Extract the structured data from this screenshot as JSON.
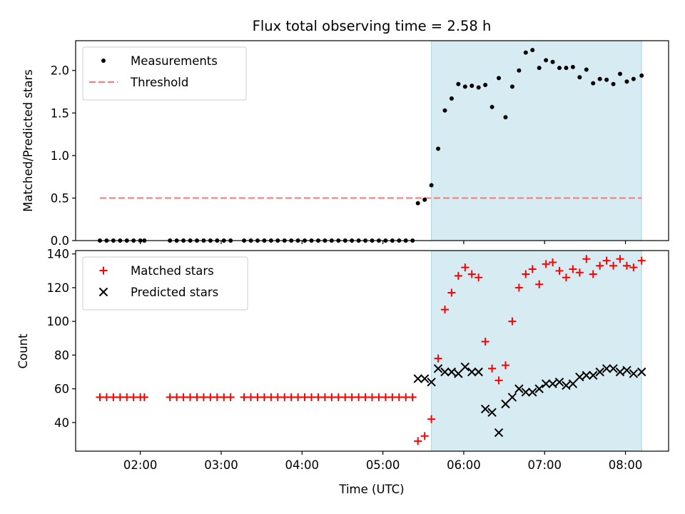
{
  "figure": {
    "title": "Flux total observing time = 2.58 h",
    "xlabel": "Time (UTC)"
  },
  "chart_data": [
    {
      "type": "scatter",
      "ylabel": "Matched/Predicted stars",
      "xlim": [
        "01:12",
        "08:32"
      ],
      "ylim": [
        0,
        2.35
      ],
      "yticks": [
        0.0,
        0.5,
        1.0,
        1.5,
        2.0
      ],
      "ytick_labels": [
        "0.0",
        "0.5",
        "1.0",
        "1.5",
        "2.0"
      ],
      "xticks": [
        "02:00",
        "03:00",
        "04:00",
        "05:00",
        "06:00",
        "07:00",
        "08:00"
      ],
      "grid": false,
      "legend": "top-left",
      "shaded_region": {
        "x": [
          "05:36",
          "08:12"
        ],
        "color": "#add8e6"
      },
      "threshold": {
        "name": "Threshold",
        "y": 0.5,
        "x": [
          "01:30",
          "08:12"
        ],
        "color": "#f08080"
      },
      "series": [
        {
          "name": "Measurements",
          "color": "#000000",
          "marker": "dot",
          "points": [
            [
              "01:30",
              0
            ],
            [
              "01:35",
              0
            ],
            [
              "01:40",
              0
            ],
            [
              "01:45",
              0
            ],
            [
              "01:50",
              0
            ],
            [
              "01:55",
              0
            ],
            [
              "02:00",
              0
            ],
            [
              "02:03",
              0
            ],
            [
              "02:22",
              0
            ],
            [
              "02:27",
              0
            ],
            [
              "02:32",
              0
            ],
            [
              "02:37",
              0
            ],
            [
              "02:42",
              0
            ],
            [
              "02:47",
              0
            ],
            [
              "02:52",
              0
            ],
            [
              "02:57",
              0
            ],
            [
              "03:02",
              0
            ],
            [
              "03:07",
              0
            ],
            [
              "03:17",
              0
            ],
            [
              "03:22",
              0
            ],
            [
              "03:27",
              0
            ],
            [
              "03:32",
              0
            ],
            [
              "03:37",
              0
            ],
            [
              "03:42",
              0
            ],
            [
              "03:47",
              0
            ],
            [
              "03:52",
              0
            ],
            [
              "03:57",
              0
            ],
            [
              "04:02",
              0
            ],
            [
              "04:07",
              0
            ],
            [
              "04:12",
              0
            ],
            [
              "04:17",
              0
            ],
            [
              "04:22",
              0
            ],
            [
              "04:27",
              0
            ],
            [
              "04:32",
              0
            ],
            [
              "04:37",
              0
            ],
            [
              "04:42",
              0
            ],
            [
              "04:47",
              0
            ],
            [
              "04:52",
              0
            ],
            [
              "04:57",
              0
            ],
            [
              "05:02",
              0
            ],
            [
              "05:07",
              0
            ],
            [
              "05:12",
              0
            ],
            [
              "05:17",
              0
            ],
            [
              "05:22",
              0
            ],
            [
              "05:26",
              0.44
            ],
            [
              "05:31",
              0.48
            ],
            [
              "05:36",
              0.65
            ],
            [
              "05:41",
              1.08
            ],
            [
              "05:46",
              1.53
            ],
            [
              "05:51",
              1.67
            ],
            [
              "05:56",
              1.84
            ],
            [
              "06:01",
              1.81
            ],
            [
              "06:06",
              1.82
            ],
            [
              "06:11",
              1.8
            ],
            [
              "06:16",
              1.83
            ],
            [
              "06:21",
              1.57
            ],
            [
              "06:26",
              1.91
            ],
            [
              "06:31",
              1.45
            ],
            [
              "06:36",
              1.81
            ],
            [
              "06:41",
              2.0
            ],
            [
              "06:46",
              2.21
            ],
            [
              "06:51",
              2.24
            ],
            [
              "06:56",
              2.03
            ],
            [
              "07:01",
              2.12
            ],
            [
              "07:06",
              2.1
            ],
            [
              "07:11",
              2.03
            ],
            [
              "07:16",
              2.03
            ],
            [
              "07:21",
              2.04
            ],
            [
              "07:26",
              1.92
            ],
            [
              "07:31",
              2.01
            ],
            [
              "07:36",
              1.85
            ],
            [
              "07:41",
              1.9
            ],
            [
              "07:46",
              1.89
            ],
            [
              "07:51",
              1.84
            ],
            [
              "07:56",
              1.96
            ],
            [
              "08:01",
              1.87
            ],
            [
              "08:06",
              1.9
            ],
            [
              "08:12",
              1.94
            ]
          ]
        }
      ]
    },
    {
      "type": "scatter",
      "ylabel": "Count",
      "xlim": [
        "01:12",
        "08:32"
      ],
      "ylim": [
        23,
        142
      ],
      "yticks": [
        40,
        60,
        80,
        100,
        120,
        140
      ],
      "ytick_labels": [
        "40",
        "60",
        "80",
        "100",
        "120",
        "140"
      ],
      "xticks": [
        "02:00",
        "03:00",
        "04:00",
        "05:00",
        "06:00",
        "07:00",
        "08:00"
      ],
      "xtick_labels": [
        "02:00",
        "03:00",
        "04:00",
        "05:00",
        "06:00",
        "07:00",
        "08:00"
      ],
      "grid": false,
      "legend": "top-left",
      "shaded_region": {
        "x": [
          "05:36",
          "08:12"
        ],
        "color": "#add8e6"
      },
      "series": [
        {
          "name": "Matched stars",
          "color": "#ff0000",
          "marker": "plus",
          "points": [
            [
              "01:30",
              55
            ],
            [
              "01:35",
              55
            ],
            [
              "01:40",
              55
            ],
            [
              "01:45",
              55
            ],
            [
              "01:50",
              55
            ],
            [
              "01:55",
              55
            ],
            [
              "02:00",
              55
            ],
            [
              "02:03",
              55
            ],
            [
              "02:22",
              55
            ],
            [
              "02:27",
              55
            ],
            [
              "02:32",
              55
            ],
            [
              "02:37",
              55
            ],
            [
              "02:42",
              55
            ],
            [
              "02:47",
              55
            ],
            [
              "02:52",
              55
            ],
            [
              "02:57",
              55
            ],
            [
              "03:02",
              55
            ],
            [
              "03:07",
              55
            ],
            [
              "03:17",
              55
            ],
            [
              "03:22",
              55
            ],
            [
              "03:27",
              55
            ],
            [
              "03:32",
              55
            ],
            [
              "03:37",
              55
            ],
            [
              "03:42",
              55
            ],
            [
              "03:47",
              55
            ],
            [
              "03:52",
              55
            ],
            [
              "03:57",
              55
            ],
            [
              "04:02",
              55
            ],
            [
              "04:07",
              55
            ],
            [
              "04:12",
              55
            ],
            [
              "04:17",
              55
            ],
            [
              "04:22",
              55
            ],
            [
              "04:27",
              55
            ],
            [
              "04:32",
              55
            ],
            [
              "04:37",
              55
            ],
            [
              "04:42",
              55
            ],
            [
              "04:47",
              55
            ],
            [
              "04:52",
              55
            ],
            [
              "04:57",
              55
            ],
            [
              "05:02",
              55
            ],
            [
              "05:07",
              55
            ],
            [
              "05:12",
              55
            ],
            [
              "05:17",
              55
            ],
            [
              "05:22",
              55
            ],
            [
              "05:26",
              29
            ],
            [
              "05:31",
              32
            ],
            [
              "05:36",
              42
            ],
            [
              "05:41",
              78
            ],
            [
              "05:46",
              107
            ],
            [
              "05:51",
              117
            ],
            [
              "05:56",
              127
            ],
            [
              "06:01",
              132
            ],
            [
              "06:06",
              128
            ],
            [
              "06:11",
              126
            ],
            [
              "06:16",
              88
            ],
            [
              "06:21",
              72
            ],
            [
              "06:26",
              65
            ],
            [
              "06:31",
              74
            ],
            [
              "06:36",
              100
            ],
            [
              "06:41",
              120
            ],
            [
              "06:46",
              128
            ],
            [
              "06:51",
              131
            ],
            [
              "06:56",
              122
            ],
            [
              "07:01",
              134
            ],
            [
              "07:06",
              135
            ],
            [
              "07:11",
              130
            ],
            [
              "07:16",
              126
            ],
            [
              "07:21",
              131
            ],
            [
              "07:26",
              129
            ],
            [
              "07:31",
              137
            ],
            [
              "07:36",
              128
            ],
            [
              "07:41",
              133
            ],
            [
              "07:46",
              136
            ],
            [
              "07:51",
              133
            ],
            [
              "07:56",
              137
            ],
            [
              "08:01",
              133
            ],
            [
              "08:06",
              132
            ],
            [
              "08:12",
              136
            ]
          ]
        },
        {
          "name": "Predicted stars",
          "color": "#000000",
          "marker": "x",
          "points": [
            [
              "05:26",
              66
            ],
            [
              "05:31",
              66
            ],
            [
              "05:36",
              64
            ],
            [
              "05:41",
              72
            ],
            [
              "05:46",
              70
            ],
            [
              "05:51",
              70
            ],
            [
              "05:56",
              69
            ],
            [
              "06:01",
              73
            ],
            [
              "06:06",
              70
            ],
            [
              "06:11",
              70
            ],
            [
              "06:16",
              48
            ],
            [
              "06:21",
              46
            ],
            [
              "06:26",
              34
            ],
            [
              "06:31",
              51
            ],
            [
              "06:36",
              55
            ],
            [
              "06:41",
              60
            ],
            [
              "06:46",
              58
            ],
            [
              "06:51",
              58
            ],
            [
              "06:56",
              60
            ],
            [
              "07:01",
              63
            ],
            [
              "07:06",
              63
            ],
            [
              "07:11",
              64
            ],
            [
              "07:16",
              62
            ],
            [
              "07:21",
              63
            ],
            [
              "07:26",
              67
            ],
            [
              "07:31",
              68
            ],
            [
              "07:36",
              68
            ],
            [
              "07:41",
              70
            ],
            [
              "07:46",
              72
            ],
            [
              "07:51",
              72
            ],
            [
              "07:56",
              70
            ],
            [
              "08:01",
              71
            ],
            [
              "08:06",
              69
            ],
            [
              "08:12",
              70
            ]
          ]
        }
      ]
    }
  ]
}
